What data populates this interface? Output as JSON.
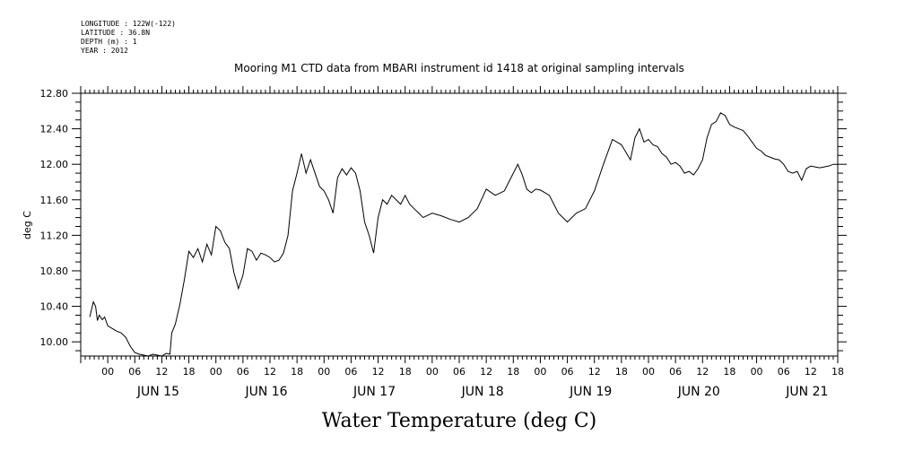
{
  "header": {
    "lines": [
      "LONGITUDE : 122W(-122)",
      "LATITUDE : 36.8N",
      "DEPTH (m) : 1",
      "YEAR : 2012"
    ]
  },
  "chart_data": {
    "type": "line",
    "title": "Mooring M1 CTD data from MBARI instrument id 1418 at original sampling intervals",
    "xlabel": "Water Temperature (deg C)",
    "ylabel": "deg C",
    "ylim": [
      9.84,
      12.8
    ],
    "y_ticks": [
      "10.00",
      "10.40",
      "10.80",
      "11.20",
      "11.60",
      "12.00",
      "12.40",
      "12.80"
    ],
    "x_start_hours": -6,
    "x_end_hours": 162,
    "hour_ticks": [
      "00",
      "06",
      "12",
      "18",
      "00",
      "06",
      "12",
      "18",
      "00",
      "06",
      "12",
      "18",
      "00",
      "06",
      "12",
      "18",
      "00",
      "06",
      "12",
      "18",
      "00",
      "06",
      "12",
      "18",
      "00",
      "06",
      "12",
      "18"
    ],
    "day_labels": [
      "JUN 15",
      "JUN 16",
      "JUN 17",
      "JUN 18",
      "JUN 19",
      "JUN 20",
      "JUN 21"
    ],
    "grid": false,
    "series": [
      {
        "color": "#000000",
        "x": [
          -4,
          -3.2,
          -2.7,
          -2.3,
          -1.9,
          -1.2,
          -0.7,
          0,
          1,
          2,
          3,
          4,
          5,
          6,
          7,
          8,
          9,
          10,
          11,
          12,
          13,
          13.8,
          14.2,
          15,
          16,
          17,
          18,
          19,
          20,
          21,
          22,
          23,
          24,
          25,
          26,
          27,
          28,
          29,
          30,
          31,
          32,
          33,
          34,
          35,
          36,
          37,
          38,
          39,
          40,
          41,
          42,
          43,
          44,
          45,
          46,
          47,
          48,
          49,
          50,
          51,
          52,
          53,
          54,
          55,
          56,
          57,
          58,
          59,
          60,
          61,
          62,
          63,
          64,
          65,
          66,
          67,
          68,
          69,
          70,
          72,
          74,
          76,
          78,
          80,
          82,
          84,
          86,
          88,
          90,
          91,
          92,
          93,
          94,
          95,
          96,
          97,
          98,
          99,
          100,
          102,
          104,
          106,
          108,
          110,
          112,
          114,
          116,
          117,
          118,
          119,
          120,
          121,
          122,
          123,
          124,
          125,
          126,
          127,
          128,
          129,
          130,
          131,
          132,
          133,
          134,
          135,
          136,
          137,
          138,
          139,
          140,
          141,
          142,
          143,
          144,
          145,
          146,
          147,
          148,
          149,
          150,
          151,
          152,
          153,
          154,
          155,
          156,
          157,
          158,
          159,
          160,
          161,
          162
        ],
        "values": [
          10.28,
          10.45,
          10.4,
          10.24,
          10.3,
          10.25,
          10.28,
          10.18,
          10.15,
          10.12,
          10.1,
          10.05,
          9.95,
          9.88,
          9.86,
          9.85,
          9.84,
          9.86,
          9.85,
          9.84,
          9.87,
          9.86,
          10.1,
          10.2,
          10.42,
          10.7,
          11.02,
          10.95,
          11.05,
          10.9,
          11.1,
          10.98,
          11.3,
          11.25,
          11.12,
          11.05,
          10.78,
          10.6,
          10.75,
          11.05,
          11.02,
          10.92,
          11.0,
          10.98,
          10.95,
          10.9,
          10.92,
          11.0,
          11.2,
          11.7,
          11.9,
          12.12,
          11.9,
          12.05,
          11.9,
          11.75,
          11.7,
          11.6,
          11.45,
          11.85,
          11.95,
          11.88,
          11.96,
          11.9,
          11.7,
          11.35,
          11.2,
          11.0,
          11.4,
          11.6,
          11.55,
          11.65,
          11.6,
          11.55,
          11.65,
          11.55,
          11.5,
          11.45,
          11.4,
          11.45,
          11.42,
          11.38,
          11.35,
          11.4,
          11.5,
          11.72,
          11.65,
          11.7,
          11.9,
          12.0,
          11.88,
          11.72,
          11.68,
          11.72,
          11.71,
          11.68,
          11.65,
          11.55,
          11.45,
          11.35,
          11.45,
          11.5,
          11.7,
          12.0,
          12.28,
          12.22,
          12.05,
          12.3,
          12.4,
          12.25,
          12.28,
          12.22,
          12.2,
          12.12,
          12.08,
          12.0,
          12.02,
          11.98,
          11.9,
          11.92,
          11.88,
          11.95,
          12.05,
          12.3,
          12.45,
          12.48,
          12.58,
          12.55,
          12.45,
          12.42,
          12.4,
          12.38,
          12.32,
          12.25,
          12.18,
          12.15,
          12.1,
          12.08,
          12.06,
          12.05,
          12.0,
          11.92,
          11.9,
          11.92,
          11.82,
          11.95,
          11.98,
          11.97,
          11.96,
          11.97,
          11.98,
          12.0,
          12.0
        ]
      }
    ]
  }
}
